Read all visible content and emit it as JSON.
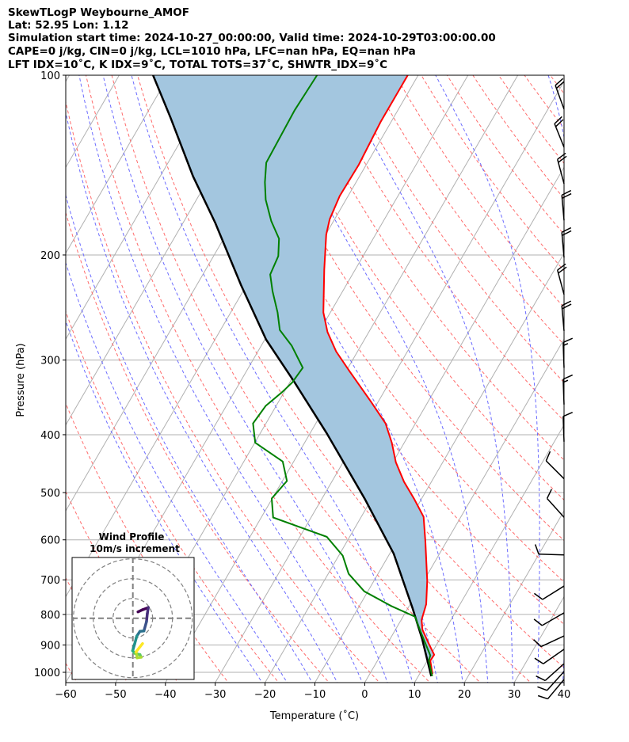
{
  "header": {
    "line1": "SkewTLogP Weybourne_AMOF",
    "line2": "Lat: 52.95   Lon: 1.12",
    "line3": "Simulation start time: 2024-10-27_00:00:00, Valid time: 2024-10-29T03:00:00.00",
    "line4": "CAPE=0 j/kg, CIN=0 j/kg, LCL=1010 hPa, LFC=nan hPa, EQ=nan hPa",
    "line5": "LFT IDX=10˚C, K IDX=9˚C, TOTAL TOTS=37˚C, SHWTR_IDX=9˚C"
  },
  "chart_data": {
    "type": "line",
    "subtype": "skewT-logP",
    "xlabel": "Temperature (˚C)",
    "ylabel": "Pressure (hPa)",
    "xlim": [
      -60,
      40
    ],
    "ylim": [
      1050,
      100
    ],
    "x_ticks": [
      "−60",
      "−50",
      "−40",
      "−30",
      "−20",
      "−10",
      "0",
      "10",
      "20",
      "30",
      "40"
    ],
    "x_tick_values": [
      -60,
      -50,
      -40,
      -30,
      -20,
      -10,
      0,
      10,
      20,
      30,
      40
    ],
    "y_ticks": [
      "100",
      "200",
      "300",
      "400",
      "500",
      "600",
      "700",
      "800",
      "900",
      "1000"
    ],
    "y_tick_values": [
      100,
      200,
      300,
      400,
      500,
      600,
      700,
      800,
      900,
      1000
    ],
    "grid": true,
    "colors": {
      "temperature": "#ff0000",
      "dewpoint": "#008000",
      "parcel": "#000000",
      "shade": "#a3c6df",
      "dry_adiabat": "#ff6b6b",
      "moist_adiabat": "#6b6bff",
      "isotherm": "#b0b0b0"
    },
    "series": [
      {
        "name": "Temperature",
        "p": [
          100,
          119.7,
          141.2,
          159.2,
          174.2,
          184.9,
          211.7,
          249.6,
          269.2,
          290.1,
          312.7,
          352.5,
          383,
          412.6,
          444.9,
          479.6,
          513,
          548.9,
          604.9,
          702.8,
          769,
          816.6,
          848,
          893.5,
          934.5,
          956,
          1007
        ],
        "T": [
          -62.1,
          -62.1,
          -61.5,
          -61.7,
          -61.0,
          -59.9,
          -56.2,
          -51.4,
          -48.3,
          -44.3,
          -39.4,
          -31.4,
          -26.0,
          -22.5,
          -19.4,
          -15.5,
          -11.4,
          -7.5,
          -4.2,
          0.7,
          3.2,
          4.1,
          5.4,
          8.2,
          10.7,
          10.6,
          12.6
        ]
      },
      {
        "name": "Dewpoint",
        "p": [
          100,
          114.5,
          140.1,
          151.1,
          161.6,
          175.5,
          187.8,
          200.9,
          215.6,
          229.9,
          249.6,
          267.1,
          283.7,
          309,
          327.1,
          339.6,
          357.9,
          383,
          412.6,
          443.5,
          478.1,
          511.5,
          550.4,
          593,
          637.6,
          684,
          731.9,
          774.4,
          806.7,
          867,
          937,
          956,
          1015
        ],
        "T": [
          -80.3,
          -80.7,
          -80.3,
          -78.3,
          -76.1,
          -72.5,
          -68.9,
          -67.0,
          -66.5,
          -64.1,
          -60.6,
          -58.1,
          -53.9,
          -49.1,
          -49.5,
          -50.4,
          -52.1,
          -52.6,
          -49.9,
          -42.2,
          -39.1,
          -40.1,
          -37.6,
          -24.6,
          -19.2,
          -15.9,
          -10.7,
          -3.6,
          2.4,
          6.0,
          10.0,
          10.3,
          12.8
        ]
      },
      {
        "name": "Parcel",
        "p": [
          100,
          117.9,
          147.7,
          176.8,
          224.7,
          277.3,
          327.1,
          397.5,
          513,
          632.8,
          780.4,
          880.5,
          1015
        ],
        "T": [
          -113.2,
          -104.7,
          -93.4,
          -83.5,
          -71.1,
          -59.7,
          -49.0,
          -36.7,
          -21.3,
          -9.2,
          0.9,
          6.5,
          12.6
        ]
      }
    ],
    "wind_barbs": [
      {
        "p": 114,
        "dir": 340,
        "speed_kt": 20
      },
      {
        "p": 132,
        "dir": 338,
        "speed_kt": 20
      },
      {
        "p": 152,
        "dir": 345,
        "speed_kt": 20
      },
      {
        "p": 175,
        "dir": 355,
        "speed_kt": 20
      },
      {
        "p": 202,
        "dir": 355,
        "speed_kt": 20
      },
      {
        "p": 233,
        "dir": 345,
        "speed_kt": 20
      },
      {
        "p": 268,
        "dir": 355,
        "speed_kt": 20
      },
      {
        "p": 309,
        "dir": 358,
        "speed_kt": 15
      },
      {
        "p": 356,
        "dir": 358,
        "speed_kt": 15
      },
      {
        "p": 411,
        "dir": 358,
        "speed_kt": 10
      },
      {
        "p": 474,
        "dir": 315,
        "speed_kt": 10
      },
      {
        "p": 550,
        "dir": 318,
        "speed_kt": 10
      },
      {
        "p": 636,
        "dir": 272,
        "speed_kt": 10
      },
      {
        "p": 717,
        "dir": 238,
        "speed_kt": 10
      },
      {
        "p": 795,
        "dir": 240,
        "speed_kt": 10
      },
      {
        "p": 869,
        "dir": 245,
        "speed_kt": 10
      },
      {
        "p": 915,
        "dir": 235,
        "speed_kt": 10
      },
      {
        "p": 967,
        "dir": 228,
        "speed_kt": 10
      },
      {
        "p": 997,
        "dir": 222,
        "speed_kt": 10
      },
      {
        "p": 1028,
        "dir": 220,
        "speed_kt": 10
      }
    ],
    "hodograph": {
      "title": "Wind Profile",
      "subtitle": "10m/s increment",
      "ring_increment_ms": 10,
      "u": [
        2.6,
        4.9,
        7.8,
        7.3,
        6.9,
        5.6,
        3.6,
        2.0,
        0.9,
        -0.1,
        0.9,
        3.6,
        4.2,
        2.2,
        1.6,
        4.9
      ],
      "v": [
        3.2,
        4.3,
        5.4,
        2.3,
        -1.7,
        -6.4,
        -6.6,
        -9.0,
        -13.0,
        -16.4,
        -17.7,
        -18.4,
        -19.7,
        -20.0,
        -17.0,
        -12.8
      ]
    }
  }
}
